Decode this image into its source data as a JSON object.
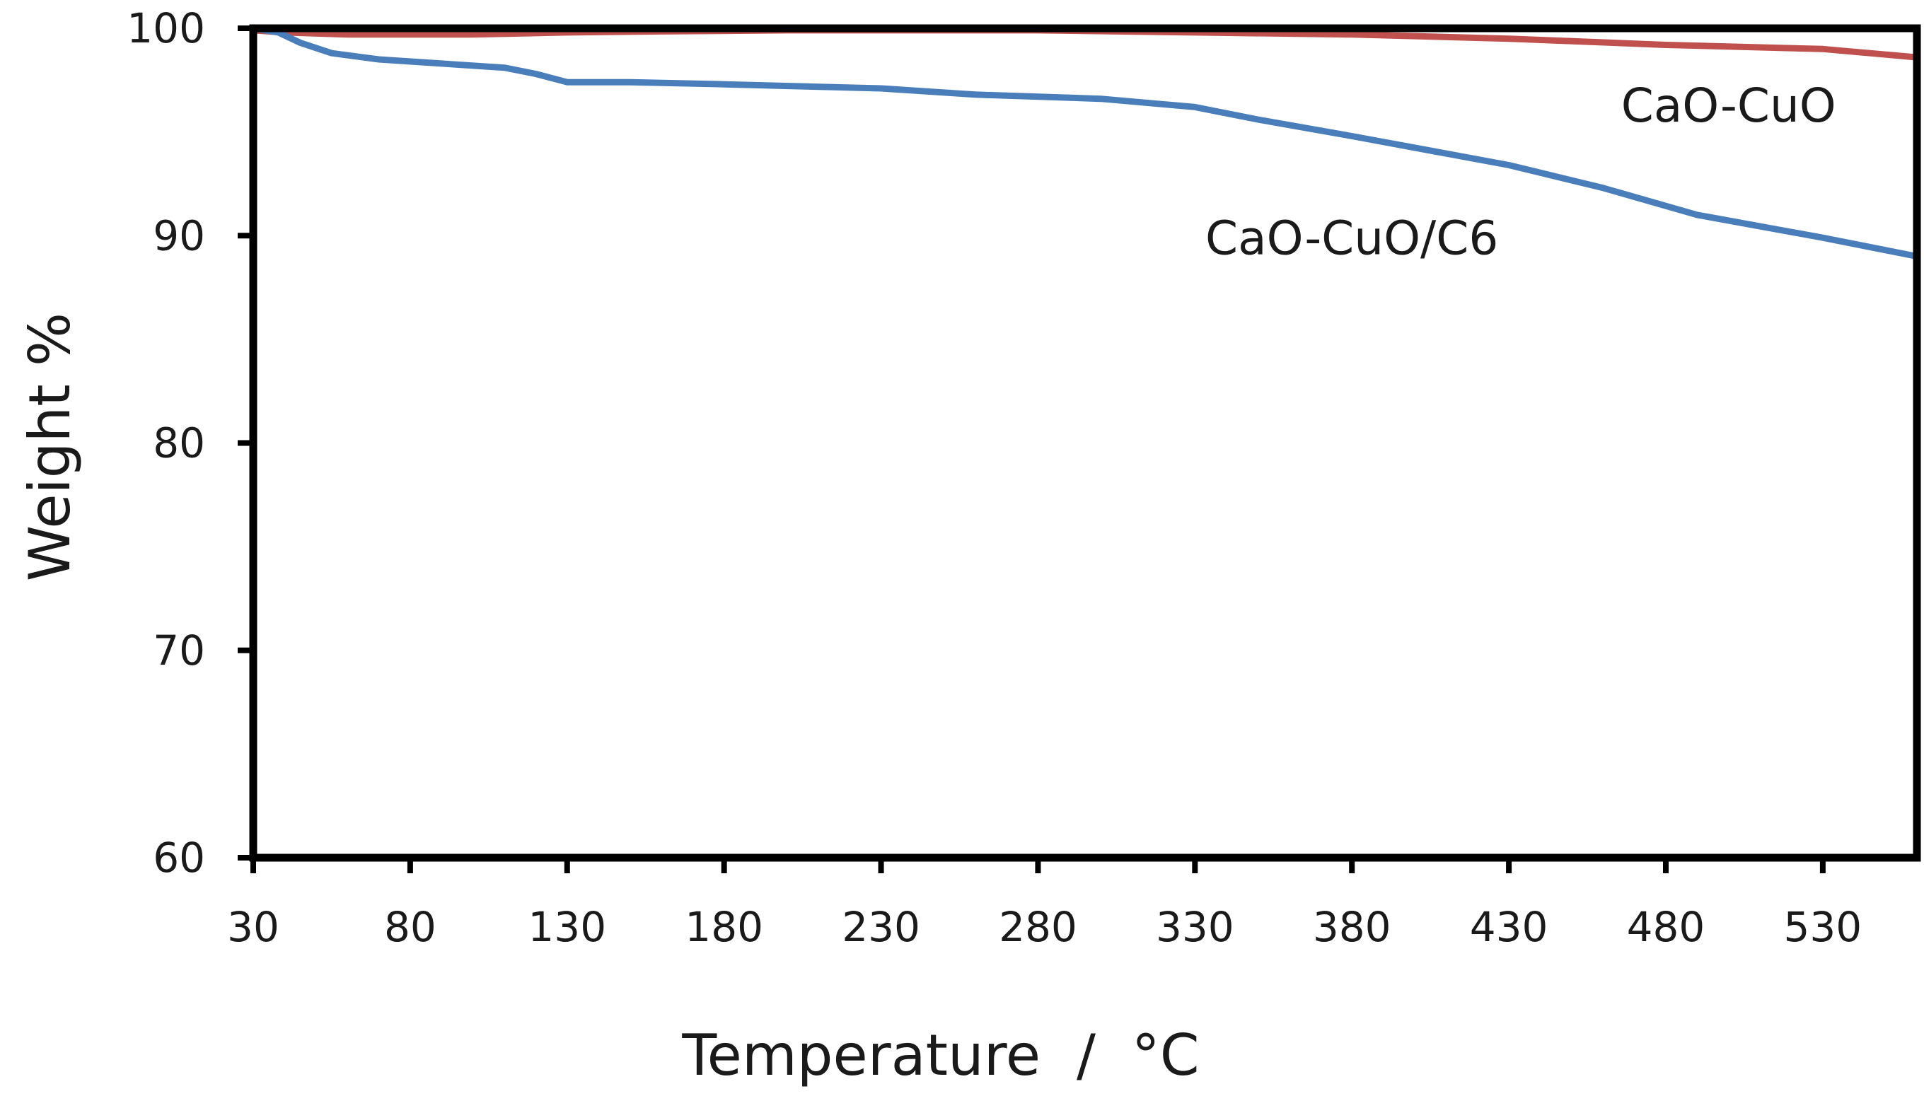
{
  "chart_data": {
    "type": "line",
    "title": "",
    "xlabel": "Temperature  /  °C",
    "ylabel": "Weight %",
    "xlim": [
      30,
      560
    ],
    "ylim": [
      60,
      100
    ],
    "xticks": [
      30,
      80,
      130,
      180,
      230,
      280,
      330,
      380,
      430,
      480,
      530
    ],
    "yticks": [
      60,
      70,
      80,
      90,
      100
    ],
    "grid": false,
    "legend": "inline labels",
    "series": [
      {
        "name": "CaO-CuO",
        "color": "#c0504d",
        "x": [
          30,
          40,
          60,
          80,
          100,
          130,
          160,
          200,
          230,
          280,
          330,
          380,
          430,
          480,
          530,
          545,
          560
        ],
        "y": [
          99.9,
          99.8,
          99.7,
          99.7,
          99.7,
          99.8,
          99.85,
          99.9,
          99.9,
          99.9,
          99.8,
          99.7,
          99.5,
          99.2,
          99.0,
          98.8,
          98.6
        ]
      },
      {
        "name": "CaO-CuO/C6",
        "color": "#4a7ebb",
        "x": [
          30,
          38,
          45,
          55,
          70,
          90,
          110,
          120,
          130,
          150,
          180,
          230,
          260,
          300,
          330,
          350,
          380,
          430,
          460,
          490,
          530,
          560
        ],
        "y": [
          100.0,
          99.8,
          99.3,
          98.8,
          98.5,
          98.3,
          98.1,
          97.8,
          97.4,
          97.4,
          97.3,
          97.1,
          96.8,
          96.6,
          96.2,
          95.6,
          94.8,
          93.4,
          92.3,
          91.0,
          89.9,
          89.0
        ]
      }
    ],
    "annotations": [
      {
        "text": "CaO-CuO",
        "series": "CaO-CuO",
        "x": 500,
        "y": 95.5
      },
      {
        "text": "CaO-CuO/C6",
        "series": "CaO-CuO/C6",
        "x": 380,
        "y": 89.1
      }
    ]
  }
}
